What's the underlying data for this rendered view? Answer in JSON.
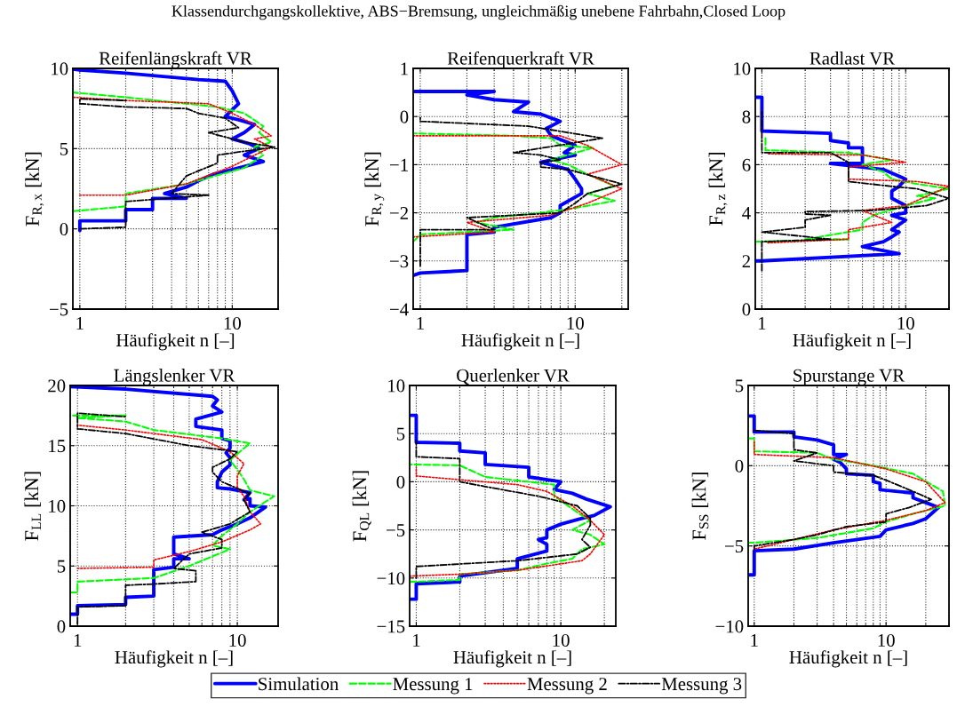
{
  "chart_data": [
    {
      "type": "line",
      "title": "Reifenlängskraft VR",
      "xlabel": "Häufigkeit n [–]",
      "ylabel": "F$_{R,x}$ [kN]",
      "log": "x",
      "grid": true,
      "legend": "bottom",
      "annotations": [
        "Klassendurchgangskollektive, ABS−Bremsung, ungleichmäßig unebene Fahrbahn,Closed Loop"
      ],
      "xlim": [
        0.9,
        20
      ],
      "xticks": [
        1,
        10
      ],
      "ylim": [
        -5,
        10
      ],
      "yticks": [
        -5,
        0,
        5,
        10
      ],
      "series": [
        {
          "name": "Simulation",
          "color": "#0000ff",
          "line_style": "solid",
          "x": [
            1,
            1,
            2,
            2,
            3,
            3,
            5,
            3.6,
            5,
            6,
            7.5,
            11,
            16,
            12,
            15,
            13,
            10,
            12,
            14,
            11,
            9,
            11,
            10,
            9,
            6,
            2,
            1,
            0.9
          ],
          "values": [
            -0.1,
            0.5,
            0.5,
            1.2,
            1.2,
            1.9,
            1.9,
            2.2,
            2.6,
            3.0,
            3.4,
            3.8,
            4.2,
            4.6,
            5.0,
            5.3,
            5.6,
            6.0,
            6.5,
            6.8,
            7.0,
            7.8,
            8.6,
            9.2,
            9.3,
            9.7,
            9.9,
            9.95
          ]
        },
        {
          "name": "Messung 1",
          "color": "#00ff00",
          "line_style": "dashed",
          "x": [
            0.9,
            2,
            2,
            5,
            12,
            16,
            14,
            18,
            15,
            16,
            12,
            8,
            2,
            0.9
          ],
          "values": [
            1.1,
            1.4,
            2.2,
            2.8,
            3.8,
            4.6,
            5.1,
            5.4,
            6.0,
            6.4,
            7.2,
            7.6,
            8.2,
            8.5
          ]
        },
        {
          "name": "Messung 2",
          "color": "#ff0000",
          "line_style": "dotted",
          "x": [
            1,
            2,
            5,
            10,
            18,
            14,
            18,
            14,
            10,
            7,
            2,
            0.9
          ],
          "values": [
            2.1,
            2.1,
            2.8,
            3.9,
            5.1,
            5.6,
            5.8,
            6.5,
            7.2,
            7.8,
            8.0,
            8.2
          ]
        },
        {
          "name": "Messung 3",
          "color": "#000000",
          "line_style": "dashdot",
          "x": [
            1,
            2,
            2,
            7,
            4,
            5,
            8,
            8,
            19,
            12,
            7,
            11,
            9,
            6,
            5,
            2,
            1,
            1,
            2,
            1
          ],
          "values": [
            0,
            0.1,
            1.7,
            2.1,
            2.2,
            3.3,
            4.1,
            4.6,
            5.1,
            5.4,
            6.0,
            6.3,
            6.9,
            7.2,
            7.5,
            7.6,
            7.8,
            8.1,
            8.0,
            8.1
          ]
        }
      ]
    },
    {
      "type": "line",
      "title": "Reifenquerkraft VR",
      "xlabel": "Häufigkeit n [–]",
      "ylabel": "F$_{R,y}$ [kN]",
      "log": "x",
      "grid": true,
      "xlim": [
        0.9,
        22
      ],
      "xticks": [
        1,
        10
      ],
      "ylim": [
        -4,
        1
      ],
      "yticks": [
        -4,
        -3,
        -2,
        -1,
        0,
        1
      ],
      "series": [
        {
          "color": "#0000ff",
          "line_style": "solid",
          "x": [
            0.9,
            3,
            2,
            3,
            5,
            4,
            6,
            8,
            6.5,
            7,
            10,
            8.5,
            10,
            6,
            9,
            10,
            11,
            11,
            8,
            8,
            7,
            3,
            3,
            2,
            2,
            1,
            0.9
          ],
          "values": [
            0.52,
            0.52,
            0.45,
            0.35,
            0.3,
            0.1,
            0.05,
            -0.1,
            -0.25,
            -0.4,
            -0.6,
            -0.75,
            -0.8,
            -0.95,
            -1.1,
            -1.3,
            -1.5,
            -1.6,
            -1.85,
            -2.0,
            -2.1,
            -2.3,
            -2.4,
            -2.45,
            -3.2,
            -3.25,
            -3.3
          ]
        },
        {
          "color": "#00ff00",
          "line_style": "dashed",
          "x": [
            0.9,
            1,
            4,
            2.3,
            3,
            6,
            10,
            18,
            12,
            18,
            12,
            9,
            7,
            13,
            8,
            7,
            4,
            0.9
          ],
          "values": [
            -2.6,
            -2.45,
            -2.35,
            -2.2,
            -2.1,
            -2.0,
            -1.9,
            -1.75,
            -1.6,
            -1.45,
            -1.2,
            -1.0,
            -0.9,
            -0.65,
            -0.6,
            -0.45,
            -0.4,
            -0.35
          ]
        },
        {
          "color": "#ff0000",
          "line_style": "dotted",
          "x": [
            0.9,
            3,
            2,
            7,
            12,
            20,
            12,
            20,
            12,
            8,
            0.9
          ],
          "values": [
            -2.5,
            -2.4,
            -2.2,
            -2.05,
            -1.8,
            -1.5,
            -1.2,
            -1.0,
            -0.6,
            -0.4,
            -0.4
          ]
        },
        {
          "color": "#000000",
          "line_style": "dashdot",
          "x": [
            1,
            1,
            3,
            2,
            8,
            10,
            12,
            20,
            9,
            6,
            6,
            8,
            6,
            4,
            15,
            5,
            1,
            1
          ],
          "values": [
            -3.1,
            -2.35,
            -2.35,
            -2.1,
            -2.0,
            -1.8,
            -1.6,
            -1.4,
            -1.1,
            -1.05,
            -0.95,
            -0.9,
            -0.8,
            -0.75,
            -0.45,
            -0.2,
            -0.1,
            0
          ]
        }
      ]
    },
    {
      "type": "line",
      "title": "Radlast VR",
      "xlabel": "Häufigkeit n [–]",
      "ylabel": "F$_{R,z}$ [kN]",
      "log": "x",
      "grid": true,
      "xlim": [
        0.9,
        20
      ],
      "xticks": [
        1,
        10
      ],
      "ylim": [
        0,
        10
      ],
      "yticks": [
        0,
        2,
        4,
        6,
        8,
        10
      ],
      "series": [
        {
          "color": "#0000ff",
          "line_style": "solid",
          "x": [
            0.9,
            1,
            1,
            3,
            3,
            4,
            4,
            5,
            5,
            3,
            7,
            10,
            9,
            8,
            8,
            10,
            10,
            8,
            10,
            8,
            9,
            8,
            7,
            5,
            9,
            1,
            0.9
          ],
          "values": [
            8.8,
            8.8,
            7.4,
            7.3,
            7.0,
            6.9,
            6.7,
            6.7,
            6.05,
            6.05,
            5.8,
            5.4,
            5.1,
            4.9,
            4.6,
            4.3,
            4.0,
            3.9,
            3.7,
            3.3,
            3.2,
            3.0,
            2.8,
            2.6,
            2.3,
            2.0,
            2.0
          ]
        },
        {
          "color": "#00ff00",
          "line_style": "dashed",
          "x": [
            0.9,
            4,
            2,
            5,
            5,
            6,
            10,
            16,
            12,
            20,
            12,
            8,
            7,
            5,
            8,
            4,
            1.06,
            1.06
          ],
          "values": [
            2.8,
            2.9,
            2.9,
            3.3,
            3.6,
            3.9,
            4.3,
            4.6,
            4.7,
            5.0,
            5.2,
            5.4,
            5.7,
            6.0,
            6.2,
            6.5,
            6.6,
            7.2
          ]
        },
        {
          "color": "#ff0000",
          "line_style": "dotted",
          "x": [
            1.1,
            4,
            4,
            8,
            5,
            10,
            20,
            12,
            4,
            4,
            10,
            5,
            1.1
          ],
          "values": [
            2.75,
            2.9,
            3.3,
            3.6,
            4.1,
            4.3,
            5.1,
            5.3,
            5.4,
            5.9,
            6.1,
            6.4,
            6.45
          ]
        },
        {
          "color": "#000000",
          "line_style": "dashdot",
          "x": [
            1,
            1,
            3,
            1,
            2,
            2,
            3,
            2,
            2,
            6,
            14,
            20,
            12,
            8,
            4,
            4,
            3,
            1,
            1
          ],
          "values": [
            1.6,
            2.8,
            2.9,
            3.2,
            3.4,
            3.7,
            3.9,
            3.95,
            4.05,
            4.1,
            4.3,
            4.6,
            5.0,
            5.1,
            5.3,
            6.1,
            6.5,
            6.5,
            8.2
          ]
        }
      ]
    },
    {
      "type": "line",
      "title": "Längslenker VR",
      "xlabel": "Häufigkeit n [–]",
      "ylabel": "F$_{LL}$ [kN]",
      "log": "x",
      "grid": true,
      "xlim": [
        0.9,
        18
      ],
      "xticks": [
        1,
        10
      ],
      "ylim": [
        0,
        20
      ],
      "yticks": [
        0,
        5,
        10,
        15,
        20
      ],
      "series": [
        {
          "color": "#0000ff",
          "line_style": "solid",
          "x": [
            0.9,
            1,
            1,
            2,
            2,
            3,
            3,
            4,
            4,
            5,
            4,
            4,
            7,
            8,
            10,
            12,
            15,
            12,
            12,
            11,
            12,
            9,
            7.5,
            7.5,
            8,
            9,
            9,
            8.5,
            9,
            9,
            8,
            8,
            5.5,
            5.5,
            8,
            7,
            7.5,
            7,
            2,
            0.9
          ],
          "values": [
            1.0,
            1.0,
            1.7,
            1.8,
            2.4,
            2.5,
            4.7,
            4.9,
            5.6,
            5.6,
            6.0,
            7.4,
            7.6,
            8.0,
            8.5,
            9.0,
            9.9,
            10.0,
            10.6,
            10.5,
            11.1,
            11.4,
            11.5,
            12.0,
            12.8,
            13.4,
            14.0,
            14.4,
            14.8,
            15.4,
            15.6,
            16.3,
            16.6,
            17.2,
            17.8,
            18.3,
            18.8,
            19.1,
            19.7,
            19.9
          ]
        },
        {
          "color": "#00ff00",
          "line_style": "dashed",
          "x": [
            0.9,
            1,
            1,
            3,
            5,
            9,
            7,
            8,
            10,
            12,
            17,
            12,
            11,
            10,
            9,
            12,
            8,
            3,
            2,
            1,
            2,
            0.9
          ],
          "values": [
            2.8,
            2.8,
            3.7,
            4.0,
            5.0,
            6.4,
            6.7,
            7.5,
            8.5,
            9.5,
            10.8,
            11.3,
            12.2,
            13.0,
            13.8,
            15.2,
            15.6,
            16.3,
            17.0,
            17.3,
            17.5,
            17.5
          ]
        },
        {
          "color": "#ff0000",
          "line_style": "dotted",
          "x": [
            1,
            3,
            3,
            5,
            8,
            12,
            14,
            12,
            11,
            10,
            10,
            11,
            9,
            6,
            2,
            1
          ],
          "values": [
            4.8,
            4.9,
            5.5,
            6.2,
            7.0,
            8.0,
            8.5,
            9.5,
            10.8,
            11.5,
            12.5,
            13.5,
            14.5,
            15.5,
            16.3,
            16.7
          ]
        },
        {
          "color": "#000000",
          "line_style": "dashdot",
          "x": [
            1,
            1,
            2,
            2,
            3,
            5.5,
            5.5,
            4,
            5,
            8,
            8,
            6,
            9,
            12,
            11,
            12,
            8,
            7,
            7,
            9,
            10,
            5,
            2,
            1,
            1,
            2
          ],
          "values": [
            0.2,
            1.6,
            1.7,
            3.4,
            3.5,
            3.7,
            4.6,
            4.8,
            6.0,
            6.5,
            7.2,
            7.8,
            8.5,
            9.5,
            10.5,
            11.0,
            12.0,
            12.8,
            13.2,
            13.9,
            14.5,
            15.0,
            16.0,
            16.4,
            17.7,
            17.4
          ]
        }
      ]
    },
    {
      "type": "line",
      "title": "Querlenker VR",
      "xlabel": "Häufigkeit n [–]",
      "ylabel": "F$_{QL}$ [kN]",
      "log": "x",
      "grid": true,
      "xlim": [
        0.9,
        24
      ],
      "xticks": [
        1,
        10
      ],
      "ylim": [
        -15,
        10
      ],
      "yticks": [
        -15,
        -10,
        -5,
        0,
        5,
        10
      ],
      "series": [
        {
          "color": "#0000ff",
          "line_style": "solid",
          "x": [
            0.9,
            1,
            1,
            2,
            2,
            5,
            5,
            8,
            8,
            7,
            8,
            8,
            10,
            14,
            17,
            22,
            15,
            12,
            9,
            10,
            6,
            6,
            3,
            3,
            2,
            2,
            1,
            1,
            0.9
          ],
          "values": [
            -12.2,
            -12.2,
            -10.6,
            -10.4,
            -9.8,
            -9.0,
            -8.0,
            -7.2,
            -6.5,
            -6.0,
            -5.8,
            -5.0,
            -4.4,
            -3.8,
            -3.5,
            -2.6,
            -1.8,
            -1.2,
            -0.8,
            0,
            0.5,
            1.5,
            1.8,
            3.0,
            3.2,
            4.0,
            4.1,
            6.9,
            6.9
          ]
        },
        {
          "color": "#00ff00",
          "line_style": "dashed",
          "x": [
            0.9,
            2,
            2,
            5,
            8,
            12,
            14,
            20,
            16,
            12,
            16,
            14,
            9,
            9,
            3,
            2,
            0.9
          ],
          "values": [
            -10.4,
            -10.2,
            -9.6,
            -9.2,
            -8.5,
            -8.0,
            -7.0,
            -6.5,
            -5.5,
            -5.0,
            -4.0,
            -3.5,
            -1.5,
            -0.3,
            0.5,
            1.7,
            1.8
          ]
        },
        {
          "color": "#ff0000",
          "line_style": "dotted",
          "x": [
            0.9,
            2,
            5,
            14,
            16,
            20,
            16,
            12,
            8,
            5,
            1,
            1
          ],
          "values": [
            -9.8,
            -9.6,
            -9.2,
            -8.2,
            -7.5,
            -5.5,
            -4.0,
            -2.5,
            -1.0,
            -0.3,
            0.6,
            1.5
          ]
        },
        {
          "color": "#000000",
          "line_style": "dashdot",
          "x": [
            1,
            1,
            5,
            13,
            16,
            14,
            16,
            16,
            13,
            7,
            3,
            2,
            2,
            1,
            1
          ],
          "values": [
            -10.0,
            -8.8,
            -8.2,
            -7.5,
            -6.8,
            -6.0,
            -4.5,
            -3.8,
            -2.5,
            -1.5,
            -0.5,
            0,
            2.4,
            2.6,
            4.3
          ]
        }
      ]
    },
    {
      "type": "line",
      "title": "Spurstange VR",
      "xlabel": "Häufigkeit n [–]",
      "ylabel": "F$_{SS}$ [kN]",
      "log": "x",
      "grid": true,
      "xlim": [
        0.9,
        30
      ],
      "xticks": [
        1,
        10
      ],
      "ylim": [
        -10,
        5
      ],
      "yticks": [
        -10,
        -5,
        0,
        5
      ],
      "series": [
        {
          "color": "#0000ff",
          "line_style": "solid",
          "x": [
            0.9,
            1,
            1,
            2,
            2,
            3,
            4,
            4,
            5,
            4,
            4.5,
            5,
            5,
            8,
            8,
            9,
            9,
            16,
            16,
            20,
            25,
            20,
            16,
            10,
            9,
            4,
            2,
            1,
            1,
            0.9
          ],
          "values": [
            3.1,
            3.1,
            2.1,
            2.1,
            1.8,
            1.6,
            1.3,
            0.7,
            0.7,
            0.4,
            0.2,
            -0.2,
            -0.5,
            -0.6,
            -1.0,
            -1.1,
            -1.5,
            -1.7,
            -2.0,
            -2.3,
            -2.6,
            -3.3,
            -3.6,
            -4.0,
            -4.4,
            -4.8,
            -5.2,
            -5.3,
            -6.8,
            -6.8
          ]
        },
        {
          "color": "#00ff00",
          "line_style": "dashed",
          "x": [
            0.9,
            1,
            1,
            3,
            4,
            7,
            16,
            27,
            28,
            16,
            10,
            8,
            3,
            1,
            0.9
          ],
          "values": [
            1.7,
            1.7,
            0.9,
            0.8,
            0.4,
            0.1,
            -0.5,
            -1.6,
            -2.5,
            -3.0,
            -3.5,
            -3.9,
            -4.5,
            -4.8,
            -4.8
          ]
        },
        {
          "color": "#ff0000",
          "line_style": "dotted",
          "x": [
            1,
            1,
            4,
            10,
            20,
            28,
            20,
            10,
            4,
            2,
            1
          ],
          "values": [
            1.5,
            0.7,
            0.5,
            -0.2,
            -1.0,
            -2.3,
            -2.8,
            -3.4,
            -4.0,
            -4.6,
            -5.2
          ]
        },
        {
          "color": "#000000",
          "line_style": "dashdot",
          "x": [
            1,
            2,
            2,
            3,
            2,
            4,
            4,
            8,
            10,
            16,
            22,
            15,
            10,
            10,
            5,
            3,
            2,
            1,
            1
          ],
          "values": [
            2.2,
            2.0,
            1.0,
            0.8,
            0.3,
            0.0,
            -0.4,
            -0.6,
            -0.9,
            -1.6,
            -2.1,
            -2.6,
            -3.0,
            -3.5,
            -3.8,
            -4.3,
            -4.6,
            -5.0,
            -5.3
          ]
        }
      ]
    }
  ]
}
